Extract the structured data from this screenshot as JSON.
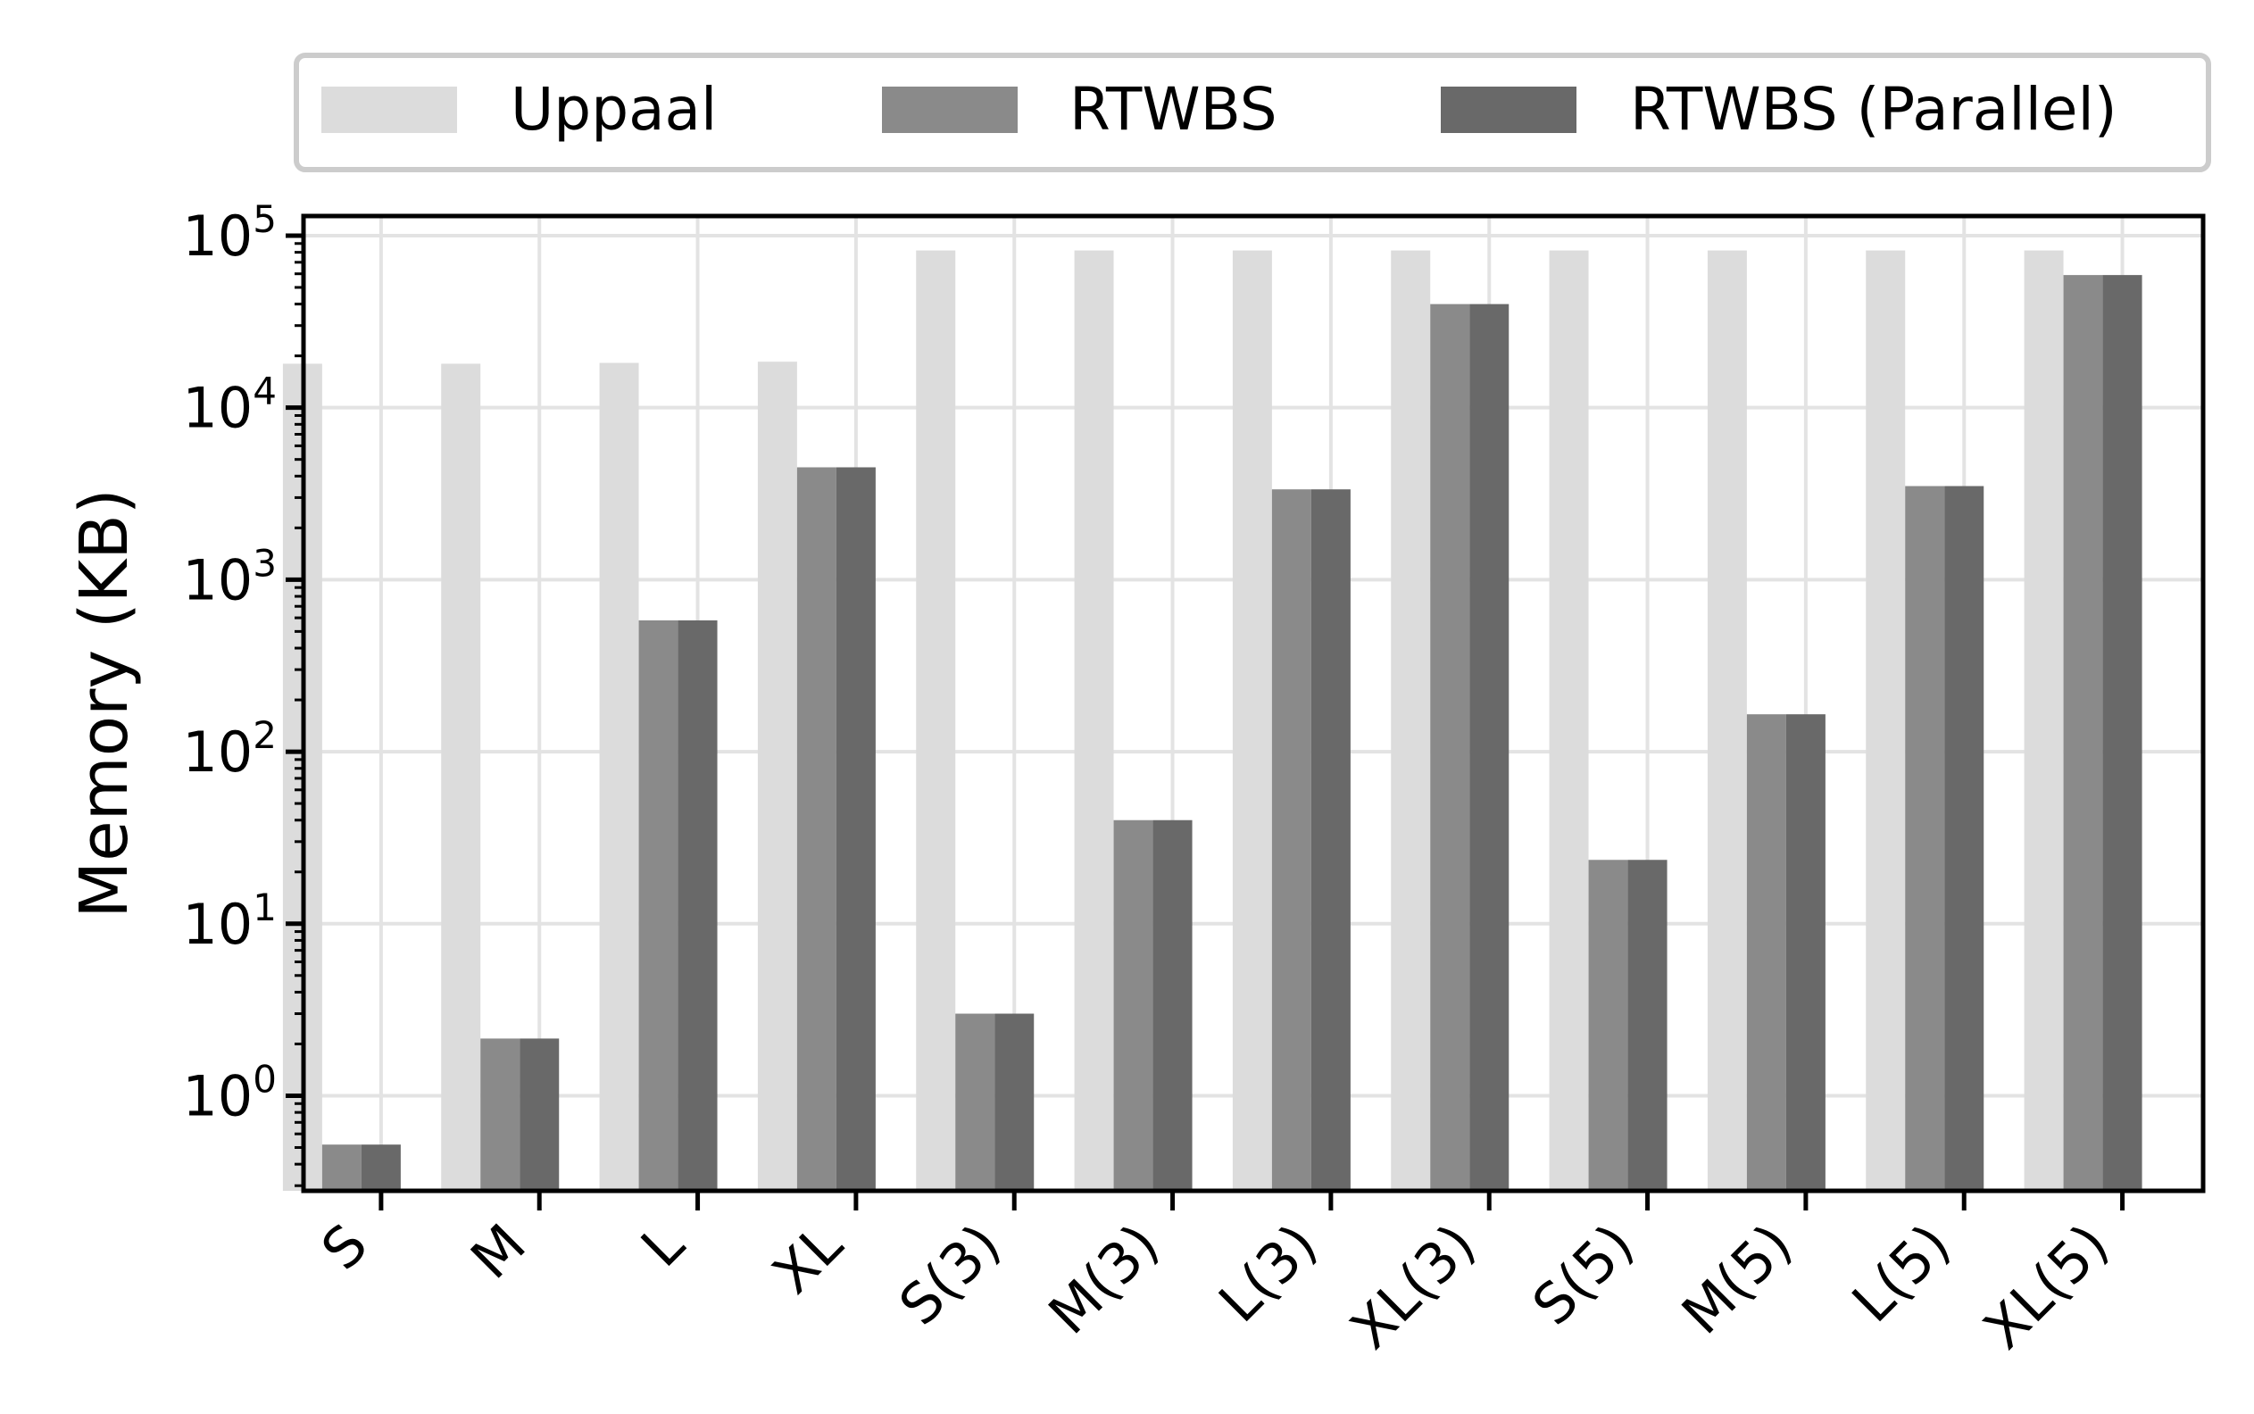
{
  "chart_data": {
    "type": "bar",
    "ylabel": "Memory (KB)",
    "xlabel": "",
    "yscale": "log",
    "ylim": [
      0.28,
      130000
    ],
    "grid": true,
    "legend_position": "top",
    "categories": [
      "S",
      "M",
      "L",
      "XL",
      "S(3)",
      "M(3)",
      "L(3)",
      "XL(3)",
      "S(5)",
      "M(5)",
      "L(5)",
      "XL(5)"
    ],
    "yticks": [
      {
        "value": 1,
        "base": "10",
        "exp": "0"
      },
      {
        "value": 10,
        "base": "10",
        "exp": "1"
      },
      {
        "value": 100,
        "base": "10",
        "exp": "2"
      },
      {
        "value": 1000,
        "base": "10",
        "exp": "3"
      },
      {
        "value": 10000,
        "base": "10",
        "exp": "4"
      },
      {
        "value": 100000,
        "base": "10",
        "exp": "5"
      }
    ],
    "series": [
      {
        "name": "Uppaal",
        "color": "#dcdcdc",
        "values": [
          18000,
          18000,
          18200,
          18500,
          82000,
          82000,
          82000,
          82000,
          82000,
          82000,
          82000,
          82000
        ]
      },
      {
        "name": "RTWBS",
        "color": "#8a8a8a",
        "values": [
          0.52,
          2.15,
          580,
          4500,
          3.0,
          40,
          3350,
          40000,
          23.5,
          165,
          3500,
          59000
        ]
      },
      {
        "name": "RTWBS (Parallel)",
        "color": "#696969",
        "values": [
          0.52,
          2.15,
          580,
          4500,
          3.0,
          40,
          3350,
          40000,
          23.5,
          165,
          3500,
          59000
        ]
      }
    ]
  }
}
